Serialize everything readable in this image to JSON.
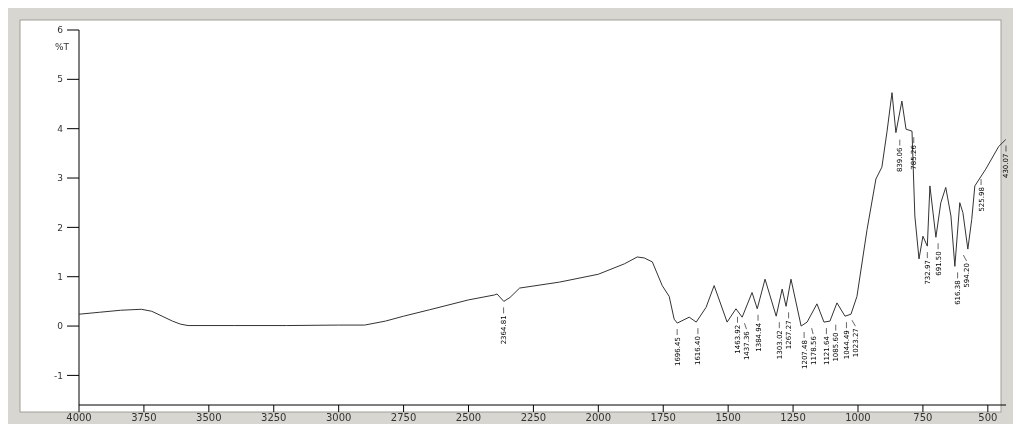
{
  "chart_data": {
    "type": "line",
    "ylabel": "%T",
    "xlim": [
      4000,
      430
    ],
    "ylim": [
      -1.6,
      6
    ],
    "xticks": [
      4000,
      3750,
      3500,
      3250,
      3000,
      2750,
      2500,
      2250,
      2000,
      1750,
      1500,
      1250,
      1000,
      750,
      500
    ],
    "yticks": [
      -1,
      0,
      1,
      2,
      3,
      4,
      5,
      6
    ],
    "grid": false,
    "marker": "none",
    "line_style": "solid",
    "series": [
      {
        "color": "#333333",
        "x": [
          4000,
          3920,
          3840,
          3760,
          3720,
          3680,
          3640,
          3610,
          3580,
          3400,
          3200,
          3000,
          2900,
          2820,
          2750,
          2650,
          2500,
          2400,
          2390,
          2364,
          2340,
          2303,
          2150,
          2000,
          1900,
          1850,
          1823,
          1792,
          1754,
          1727,
          1708,
          1696,
          1650,
          1623,
          1585,
          1554,
          1504,
          1470,
          1446,
          1408,
          1388,
          1358,
          1315,
          1292,
          1277,
          1258,
          1219,
          1196,
          1158,
          1131,
          1108,
          1081,
          1050,
          1027,
          1004,
          965,
          931,
          908,
          888,
          869,
          854,
          831,
          815,
          792,
          781,
          765,
          750,
          733,
          723,
          700,
          681,
          662,
          642,
          627,
          608,
          596,
          577,
          562,
          550,
          508,
          458,
          431
        ],
        "values": [
          0.24,
          0.28,
          0.32,
          0.34,
          0.3,
          0.2,
          0.1,
          0.04,
          0.01,
          0.01,
          0.01,
          0.02,
          0.02,
          0.1,
          0.2,
          0.33,
          0.53,
          0.63,
          0.65,
          0.5,
          0.58,
          0.77,
          0.89,
          1.05,
          1.26,
          1.4,
          1.38,
          1.3,
          0.82,
          0.6,
          0.14,
          0.06,
          0.18,
          0.08,
          0.38,
          0.82,
          0.08,
          0.35,
          0.18,
          0.68,
          0.35,
          0.95,
          0.2,
          0.75,
          0.4,
          0.95,
          0,
          0.08,
          0.45,
          0.08,
          0.1,
          0.47,
          0.2,
          0.24,
          0.6,
          1.96,
          2.98,
          3.22,
          3.95,
          4.73,
          3.92,
          4.56,
          3.99,
          3.95,
          2.23,
          1.36,
          1.82,
          1.62,
          2.84,
          1.8,
          2.5,
          2.81,
          2.23,
          1.21,
          2.5,
          2.3,
          1.56,
          2.16,
          2.84,
          3.18,
          3.64,
          3.78
        ]
      }
    ],
    "annotations": [
      {
        "text": "2364.81",
        "x": 2364.81,
        "y": 0.5
      },
      {
        "text": "1696.45",
        "x": 1696.45,
        "y": 0.06
      },
      {
        "text": "1616.40",
        "x": 1616.4,
        "y": 0.08
      },
      {
        "text": "1463.92",
        "x": 1463.92,
        "y": 0.31
      },
      {
        "text": "1437.36",
        "x": 1437.36,
        "y": 0.18
      },
      {
        "text": "1384.94",
        "x": 1384.94,
        "y": 0.35
      },
      {
        "text": "1303.02",
        "x": 1303.02,
        "y": 0.2
      },
      {
        "text": "1267.27",
        "x": 1267.27,
        "y": 0.4
      },
      {
        "text": "1207.48",
        "x": 1207.48,
        "y": 0
      },
      {
        "text": "1178.56",
        "x": 1178.56,
        "y": 0.08
      },
      {
        "text": "1121.64",
        "x": 1121.64,
        "y": 0.08
      },
      {
        "text": "1085.60",
        "x": 1085.6,
        "y": 0.15
      },
      {
        "text": "1044.49",
        "x": 1044.49,
        "y": 0.2
      },
      {
        "text": "1023.27",
        "x": 1023.27,
        "y": 0.24
      },
      {
        "text": "839.06",
        "x": 839.06,
        "y": 3.9
      },
      {
        "text": "785.26",
        "x": 785.26,
        "y": 3.95
      },
      {
        "text": "732.97",
        "x": 732.97,
        "y": 1.62
      },
      {
        "text": "691.50",
        "x": 691.5,
        "y": 1.8
      },
      {
        "text": "616.38",
        "x": 616.38,
        "y": 1.21
      },
      {
        "text": "594.20",
        "x": 594.2,
        "y": 1.56
      },
      {
        "text": "525.98",
        "x": 525.98,
        "y": 3.1
      },
      {
        "text": "430.07",
        "x": 430.07,
        "y": 3.78
      }
    ]
  }
}
